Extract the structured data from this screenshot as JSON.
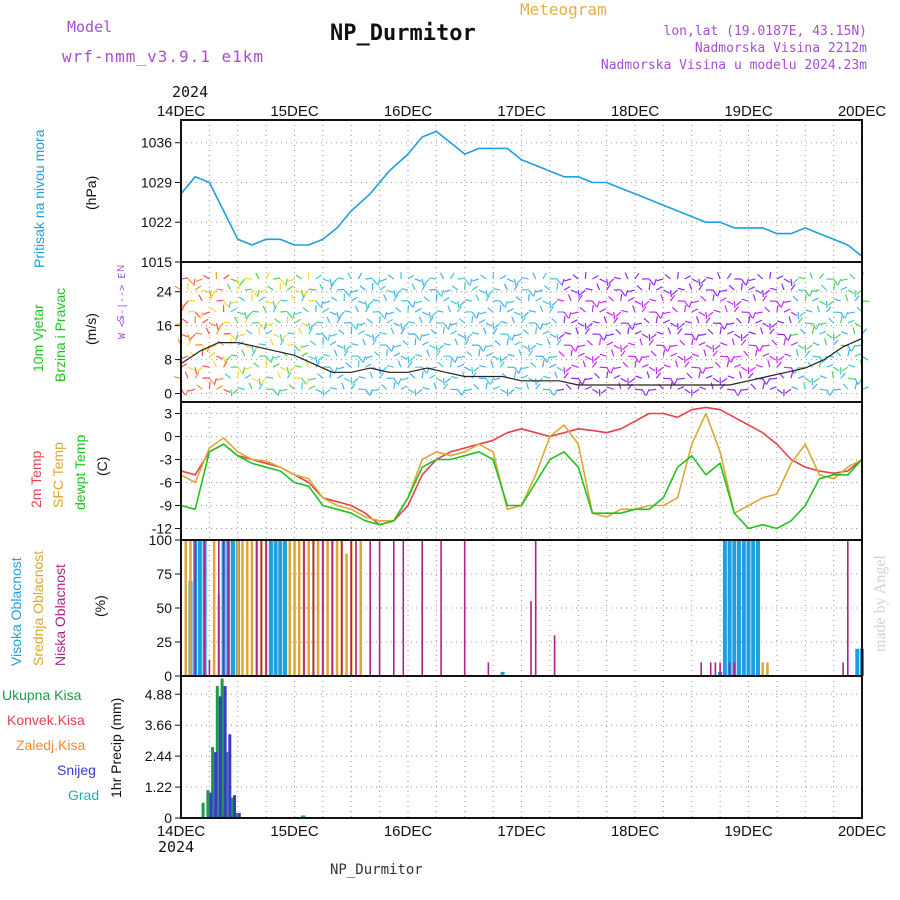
{
  "header": {
    "model_label": "Model",
    "model_name": "wrf-nmm_v3.9.1  e1km",
    "title": "NP_Durmitor",
    "subtitle": "Meteogram",
    "lonlat": "lon,lat (19.0187E, 43.15N)",
    "elevation": "Nadmorska Visina 2212m",
    "model_elevation": "Nadmorska Visina u modelu 2024.23m",
    "footer": "NP_Durmitor",
    "watermark": "made by Angel"
  },
  "colors": {
    "pressure": "#1e9fe0",
    "temp2m": "#e8414a",
    "sfc": "#e0a632",
    "dewpt": "#1ec41e",
    "high_cloud": "#1e9fe0",
    "mid_cloud": "#e0a632",
    "low_cloud": "#b0208a",
    "total_precip": "#1e9a4a",
    "conv_precip": "#e8414a",
    "freezing": "#f08a30",
    "snow": "#3a3ad0",
    "hail": "#20b0b0",
    "model_purple": "#a64dd6",
    "title_orange": "#e8b040"
  },
  "axes": {
    "year": "2024",
    "days": [
      "14DEC",
      "15DEC",
      "16DEC",
      "17DEC",
      "18DEC",
      "19DEC",
      "20DEC"
    ]
  },
  "labels": {
    "pressure": [
      "Pritisak na nivou mora",
      "(hPa)"
    ],
    "wind": [
      "10m Vjetar",
      "Brzina i Pravac",
      "(m/s)"
    ],
    "wind_compass": [
      "N",
      "W  <--|-->  E",
      "S"
    ],
    "temp": [
      "2m Temp",
      "SFC Temp",
      "dewpt Temp",
      "(C)"
    ],
    "cloud": [
      "Visoka Oblacnost",
      "Srednja Oblacnost",
      "Niska Oblacnost",
      "(%)"
    ],
    "precip_legend": [
      "Ukupna Kisa",
      "Konvek.Kisa",
      "Zaledj.Kisa",
      "Snijeg",
      "Grad"
    ],
    "precip_axis": "1hr Precip (mm)"
  },
  "chart_data": [
    {
      "type": "line",
      "panel": "pressure",
      "ylabel": "Pritisak na nivou mora (hPa)",
      "ylim": [
        1015,
        1040
      ],
      "yticks": [
        "1015",
        "1022",
        "1029",
        "1036"
      ],
      "x_hours": [
        0,
        3,
        6,
        9,
        12,
        15,
        18,
        21,
        24,
        27,
        30,
        33,
        36,
        40,
        44,
        48,
        51,
        54,
        57,
        60,
        63,
        66,
        69,
        72,
        75,
        78,
        81,
        84,
        87,
        90,
        93,
        96,
        99,
        102,
        105,
        108,
        111,
        114,
        117,
        120,
        123,
        126,
        129,
        132,
        135,
        138,
        141,
        144
      ],
      "values": [
        1027,
        1030,
        1029,
        1024,
        1019,
        1018,
        1019,
        1019,
        1018,
        1018,
        1019,
        1021,
        1024,
        1027,
        1031,
        1034,
        1037,
        1038,
        1036,
        1034,
        1035,
        1035,
        1035,
        1033,
        1032,
        1031,
        1030,
        1030,
        1029,
        1029,
        1028,
        1027,
        1026,
        1025,
        1024,
        1023,
        1022,
        1022,
        1021,
        1021,
        1021,
        1020,
        1020,
        1021,
        1020,
        1019,
        1018,
        1016
      ]
    },
    {
      "type": "line",
      "panel": "wind",
      "ylabel": "10m Vjetar Brzina i Pravac (m/s)",
      "ylim": [
        -2,
        31
      ],
      "yticks": [
        "0",
        "8",
        "16",
        "24"
      ],
      "x_hours": [
        0,
        4,
        8,
        12,
        16,
        20,
        24,
        28,
        32,
        36,
        40,
        44,
        48,
        52,
        56,
        60,
        64,
        68,
        72,
        76,
        80,
        84,
        88,
        92,
        96,
        100,
        104,
        108,
        112,
        116,
        120,
        124,
        128,
        132,
        136,
        140,
        144
      ],
      "values": [
        7,
        10,
        12,
        12,
        11,
        10,
        9,
        7,
        5,
        5,
        6,
        5,
        5,
        6,
        5,
        4,
        4,
        4,
        3,
        3,
        3,
        2,
        2,
        2,
        2,
        2,
        2,
        2,
        2,
        2,
        3,
        4,
        5,
        6,
        8,
        11,
        13
      ]
    },
    {
      "type": "line",
      "panel": "temperature",
      "ylabel": "(C)",
      "ylim": [
        -13.5,
        4.5
      ],
      "yticks": [
        "-12",
        "-9",
        "-6",
        "-3",
        "0",
        "3"
      ],
      "x_hours": [
        0,
        3,
        6,
        9,
        12,
        15,
        18,
        21,
        24,
        27,
        30,
        33,
        36,
        39,
        42,
        45,
        48,
        51,
        54,
        57,
        60,
        63,
        66,
        69,
        72,
        75,
        78,
        81,
        84,
        87,
        90,
        93,
        96,
        99,
        102,
        105,
        108,
        111,
        114,
        117,
        120,
        123,
        126,
        129,
        132,
        135,
        138,
        141,
        144
      ],
      "series": [
        {
          "name": "2m Temp",
          "values": [
            -4.5,
            -5,
            -2,
            -1,
            -2.5,
            -3,
            -3.5,
            -4,
            -5,
            -6,
            -8,
            -8.5,
            -9,
            -10,
            -11.5,
            -11,
            -9,
            -5,
            -3,
            -2,
            -1.5,
            -1,
            -0.5,
            0.5,
            1,
            0.5,
            0,
            0.5,
            1,
            0.8,
            0.5,
            1,
            2,
            3,
            3,
            2.5,
            3.5,
            3.8,
            3.5,
            2.5,
            1.5,
            0.5,
            -1,
            -3,
            -4,
            -4.5,
            -4.8,
            -4.5,
            -3
          ]
        },
        {
          "name": "SFC Temp",
          "values": [
            -5,
            -6,
            -1.5,
            -0.2,
            -2,
            -3,
            -3.2,
            -4,
            -5,
            -5.5,
            -8,
            -9,
            -9.5,
            -10.5,
            -11,
            -11,
            -8,
            -3,
            -2,
            -2.5,
            -2,
            -1,
            -2,
            -9.5,
            -9,
            -5,
            0,
            1.5,
            -1,
            -10,
            -10.5,
            -9.5,
            -9.5,
            -9,
            -9,
            -8,
            -1,
            3,
            -2,
            -10,
            -9,
            -8,
            -7.5,
            -3.5,
            -1,
            -5,
            -5.5,
            -4,
            -3
          ]
        },
        {
          "name": "dewpt Temp",
          "values": [
            -9,
            -9.5,
            -2,
            -1,
            -2.5,
            -3.5,
            -4,
            -4.5,
            -6,
            -6.5,
            -9,
            -9.5,
            -10,
            -11,
            -11.5,
            -11,
            -8,
            -4,
            -3,
            -3,
            -2.5,
            -2,
            -3,
            -9,
            -9,
            -6,
            -3,
            -2,
            -4,
            -10,
            -10,
            -10,
            -9.5,
            -9.5,
            -8,
            -4,
            -2.5,
            -5,
            -3.5,
            -10,
            -12,
            -11.5,
            -12,
            -11,
            -9,
            -5.5,
            -5,
            -5,
            -3
          ]
        }
      ]
    },
    {
      "type": "bar",
      "panel": "cloud",
      "ylabel": "(%)",
      "ylim": [
        0,
        100
      ],
      "yticks": [
        "0",
        "25",
        "50",
        "75",
        "100"
      ],
      "series": [
        {
          "name": "Visoka Oblacnost",
          "bars": [
            [
              2,
              70
            ],
            [
              3,
              100
            ],
            [
              4,
              100
            ],
            [
              5,
              100
            ],
            [
              9,
              100
            ],
            [
              10,
              100
            ],
            [
              11,
              100
            ],
            [
              12,
              100
            ],
            [
              19,
              100
            ],
            [
              20,
              100
            ],
            [
              21,
              100
            ],
            [
              22,
              100
            ],
            [
              68,
              3
            ],
            [
              114,
              3
            ],
            [
              115,
              100
            ],
            [
              116,
              100
            ],
            [
              117,
              100
            ],
            [
              118,
              100
            ],
            [
              119,
              100
            ],
            [
              120,
              100
            ],
            [
              121,
              100
            ],
            [
              122,
              100
            ],
            [
              143,
              20
            ],
            [
              144,
              20
            ]
          ]
        },
        {
          "name": "Srednja Oblacnost",
          "bars": [
            [
              1,
              100
            ],
            [
              2,
              100
            ],
            [
              7,
              100
            ],
            [
              8,
              60
            ],
            [
              12,
              100
            ],
            [
              13,
              100
            ],
            [
              14,
              100
            ],
            [
              15,
              100
            ],
            [
              16,
              100
            ],
            [
              17,
              100
            ],
            [
              18,
              100
            ],
            [
              23,
              100
            ],
            [
              24,
              100
            ],
            [
              25,
              100
            ],
            [
              26,
              100
            ],
            [
              27,
              100
            ],
            [
              28,
              100
            ],
            [
              29,
              100
            ],
            [
              30,
              100
            ],
            [
              31,
              100
            ],
            [
              32,
              100
            ],
            [
              33,
              100
            ],
            [
              34,
              100
            ],
            [
              35,
              90
            ],
            [
              36,
              100
            ],
            [
              38,
              100
            ],
            [
              123,
              10
            ],
            [
              124,
              10
            ]
          ]
        },
        {
          "name": "Niska Oblacnost",
          "bars": [
            [
              3,
              100
            ],
            [
              5,
              100
            ],
            [
              6,
              12
            ],
            [
              8,
              100
            ],
            [
              9,
              100
            ],
            [
              10,
              100
            ],
            [
              16,
              100
            ],
            [
              17,
              100
            ],
            [
              18,
              100
            ],
            [
              26,
              100
            ],
            [
              28,
              100
            ],
            [
              30,
              100
            ],
            [
              32,
              100
            ],
            [
              34,
              100
            ],
            [
              36,
              100
            ],
            [
              37,
              100
            ],
            [
              40,
              100
            ],
            [
              42,
              100
            ],
            [
              45,
              100
            ],
            [
              47,
              100
            ],
            [
              51,
              100
            ],
            [
              55,
              100
            ],
            [
              60,
              100
            ],
            [
              65,
              10
            ],
            [
              74,
              55
            ],
            [
              75,
              100
            ],
            [
              79,
              30
            ],
            [
              110,
              10
            ],
            [
              112,
              10
            ],
            [
              113,
              10
            ],
            [
              114,
              10
            ],
            [
              116,
              10
            ],
            [
              117,
              10
            ],
            [
              140,
              10
            ],
            [
              141,
              100
            ]
          ]
        }
      ]
    },
    {
      "type": "bar",
      "panel": "precip",
      "ylabel": "1hr Precip (mm)",
      "ylim": [
        0,
        5.6
      ],
      "yticks": [
        "0",
        "1.22",
        "2.44",
        "3.66",
        "4.88"
      ],
      "series": [
        {
          "name": "Ukupna Kisa",
          "bars": [
            [
              5,
              0.6
            ],
            [
              6,
              1.1
            ],
            [
              7,
              2.8
            ],
            [
              8,
              5.2
            ],
            [
              9,
              5.5
            ],
            [
              10,
              2.6
            ],
            [
              11,
              0.8
            ],
            [
              12,
              0.2
            ],
            [
              26,
              0.1
            ]
          ]
        },
        {
          "name": "Konvek.Kisa",
          "bars": [
            [
              7,
              0.3
            ],
            [
              8,
              0.5
            ],
            [
              9,
              0.3
            ]
          ]
        },
        {
          "name": "Zaledj.Kisa",
          "bars": []
        },
        {
          "name": "Snijeg",
          "bars": [
            [
              6,
              1.0
            ],
            [
              7,
              2.6
            ],
            [
              8,
              4.8
            ],
            [
              9,
              5.2
            ],
            [
              10,
              3.3
            ],
            [
              11,
              0.9
            ],
            [
              12,
              0.2
            ]
          ]
        },
        {
          "name": "Grad",
          "bars": [
            [
              26,
              0.1
            ]
          ]
        }
      ]
    }
  ]
}
